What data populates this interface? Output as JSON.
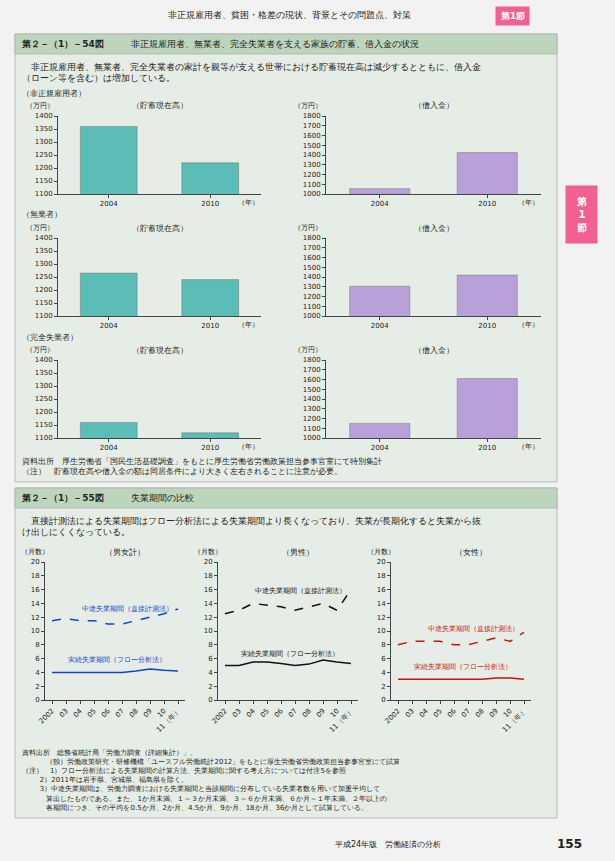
{
  "title": "非正規雇用者、貧困・格差の現状、背景とその問題点、対策",
  "annotations": [
    "第1節",
    "第",
    "1",
    "節",
    "第２－（1）－54図",
    "非正規雇用者、無業者、完全失業者を支える家族の貯蓄、借入金の状況",
    "　非正規雇用者、無業者、完全失業者の家計を親等が支える世帯における貯蓄現在高は減少するとともに、借入金\n（ローン等を含む）は増加している。",
    "資料出所　厚生労働省「国民生活基礎調査」をもとに厚生労働省労働政策担当参事官室にて特別集計\n（注）　貯蓄現在高や借入金の額は同居条件により大きく左右されることに注意が必要。",
    "第２－（1）－55図",
    "失業期間の比較",
    "　直接計測法による失業期間はフロー分析法による失業期間より長くなっており、失業が長期化すると失業から抜\nけ出しにくくなっている。",
    "資料出所　総務省統計局「労働力調査（詳細集計）」。\n           （独）労働政策研究・研修機構「ユースフル労働統計2012」をもとに厚生労働省労働政策担当参事官室にて試算\n（注）　1）フロー分析法による失業期間の計算方法、失業期間に関する考え方については付注5を参照\n        2）2011年は岩手県、宮城県、福島県を除く。\n        3）中途失業期間は、労働力調査における失業期間と当該期間に分布している失業者数を用いて加重平均して\n           算出したものである。また、1か月未満、１～３か月未満、３～６か月未満、６か月～１年未満、２年以上の\n           各期間につき、その平均を0.5か月、2か月、4.5か月、9か月、18か月、36か月として試算している。",
    "平成24年版　労働経済の分析",
    "155"
  ],
  "chart_data": [
    {
      "type": "bar",
      "title": "（貯蓄現在高）",
      "annotations": [
        "（非正規雇用者）"
      ],
      "ylabel": "（万円）",
      "xlabel": "（年）",
      "categories": [
        "2004",
        "2010"
      ],
      "values": [
        1360,
        1220
      ],
      "color": "#5bbdb5",
      "ylim": [
        1100,
        1400
      ],
      "yticks": [
        1100,
        1150,
        1200,
        1250,
        1300,
        1350,
        1400
      ],
      "grid": false
    },
    {
      "type": "bar",
      "title": "（借入金）",
      "ylabel": "（万円）",
      "xlabel": "（年）",
      "categories": [
        "2004",
        "2010"
      ],
      "values": [
        1055,
        1425
      ],
      "color": "#b8a0d8",
      "ylim": [
        1000,
        1800
      ],
      "yticks": [
        1000,
        1100,
        1200,
        1300,
        1400,
        1500,
        1600,
        1700,
        1800
      ],
      "grid": false
    },
    {
      "type": "bar",
      "title": "（貯蓄現在高）",
      "annotations": [
        "（無業者）"
      ],
      "ylabel": "（万円）",
      "xlabel": "（年）",
      "categories": [
        "2004",
        "2010"
      ],
      "values": [
        1265,
        1240
      ],
      "color": "#5bbdb5",
      "ylim": [
        1100,
        1400
      ],
      "yticks": [
        1100,
        1150,
        1200,
        1250,
        1300,
        1350,
        1400
      ],
      "grid": false
    },
    {
      "type": "bar",
      "title": "（借入金）",
      "ylabel": "（万円）",
      "xlabel": "（年）",
      "categories": [
        "2004",
        "2010"
      ],
      "values": [
        1305,
        1420
      ],
      "color": "#b8a0d8",
      "ylim": [
        1000,
        1800
      ],
      "yticks": [
        1000,
        1100,
        1200,
        1300,
        1400,
        1500,
        1600,
        1700,
        1800
      ],
      "grid": false
    },
    {
      "type": "bar",
      "title": "（貯蓄現在高）",
      "annotations": [
        "（完全失業者）"
      ],
      "ylabel": "（万円）",
      "xlabel": "（年）",
      "categories": [
        "2004",
        "2010"
      ],
      "values": [
        1160,
        1120
      ],
      "color": "#5bbdb5",
      "ylim": [
        1100,
        1400
      ],
      "yticks": [
        1100,
        1150,
        1200,
        1250,
        1300,
        1350,
        1400
      ],
      "grid": false
    },
    {
      "type": "bar",
      "title": "（借入金）",
      "ylabel": "（万円）",
      "xlabel": "（年）",
      "categories": [
        "2004",
        "2010"
      ],
      "values": [
        1150,
        1610
      ],
      "color": "#b8a0d8",
      "ylim": [
        1000,
        1800
      ],
      "yticks": [
        1000,
        1100,
        1200,
        1300,
        1400,
        1500,
        1600,
        1700,
        1800
      ],
      "grid": false
    },
    {
      "type": "line",
      "title": "（男女計）",
      "ylabel": "（月数）",
      "categories": [
        "2002",
        "03",
        "04",
        "05",
        "06",
        "07",
        "08",
        "09",
        "10",
        "11（年）"
      ],
      "series": [
        {
          "name": "中途失業期間（直接計測法）",
          "color": "#1144cc",
          "line_style": "dashed",
          "values": [
            11.5,
            11.8,
            11.5,
            11.5,
            11.0,
            11.0,
            11.5,
            12.0,
            12.5,
            13.2
          ]
        },
        {
          "name": "実続失業期間（フロー分析法）",
          "color": "#1144cc",
          "line_style": "solid",
          "values": [
            4.0,
            4.0,
            4.0,
            4.0,
            4.0,
            4.0,
            4.2,
            4.5,
            4.3,
            4.2
          ]
        }
      ],
      "ylim": [
        0,
        20
      ],
      "yticks": [
        0,
        2,
        4,
        6,
        8,
        10,
        12,
        14,
        16,
        18,
        20
      ],
      "grid": false
    },
    {
      "type": "line",
      "title": "（男性）",
      "ylabel": "（月数）",
      "categories": [
        "2002",
        "03",
        "04",
        "05",
        "06",
        "07",
        "08",
        "09",
        "10",
        "11（年）"
      ],
      "series": [
        {
          "name": "中途失業期間（直接計測法）",
          "color": "#111111",
          "line_style": "dashed",
          "values": [
            12.5,
            13.0,
            14.0,
            13.8,
            13.5,
            13.0,
            13.5,
            14.0,
            13.0,
            16.0
          ]
        },
        {
          "name": "実続失業期間（フロー分析法）",
          "color": "#111111",
          "line_style": "solid",
          "values": [
            5.0,
            5.0,
            5.5,
            5.5,
            5.3,
            5.0,
            5.2,
            5.8,
            5.5,
            5.3
          ]
        }
      ],
      "ylim": [
        0,
        20
      ],
      "yticks": [
        0,
        2,
        4,
        6,
        8,
        10,
        12,
        14,
        16,
        18,
        20
      ],
      "grid": false
    },
    {
      "type": "line",
      "title": "（女性）",
      "ylabel": "（月数）",
      "categories": [
        "2002",
        "03",
        "04",
        "05",
        "06",
        "07",
        "08",
        "09",
        "10",
        "11（年）"
      ],
      "series": [
        {
          "name": "中途失業期間（直接計測法）",
          "color": "#cc1111",
          "line_style": "dashed",
          "values": [
            8.0,
            8.5,
            8.5,
            8.5,
            8.0,
            8.0,
            8.5,
            9.0,
            8.5,
            9.8
          ]
        },
        {
          "name": "実続失業期間（フロー分析法）",
          "color": "#cc1111",
          "line_style": "solid",
          "values": [
            3.0,
            3.0,
            3.0,
            3.0,
            3.0,
            3.0,
            3.0,
            3.2,
            3.2,
            3.0
          ]
        }
      ],
      "ylim": [
        0,
        20
      ],
      "yticks": [
        0,
        2,
        4,
        6,
        8,
        10,
        12,
        14,
        16,
        18,
        20
      ],
      "grid": false
    }
  ]
}
